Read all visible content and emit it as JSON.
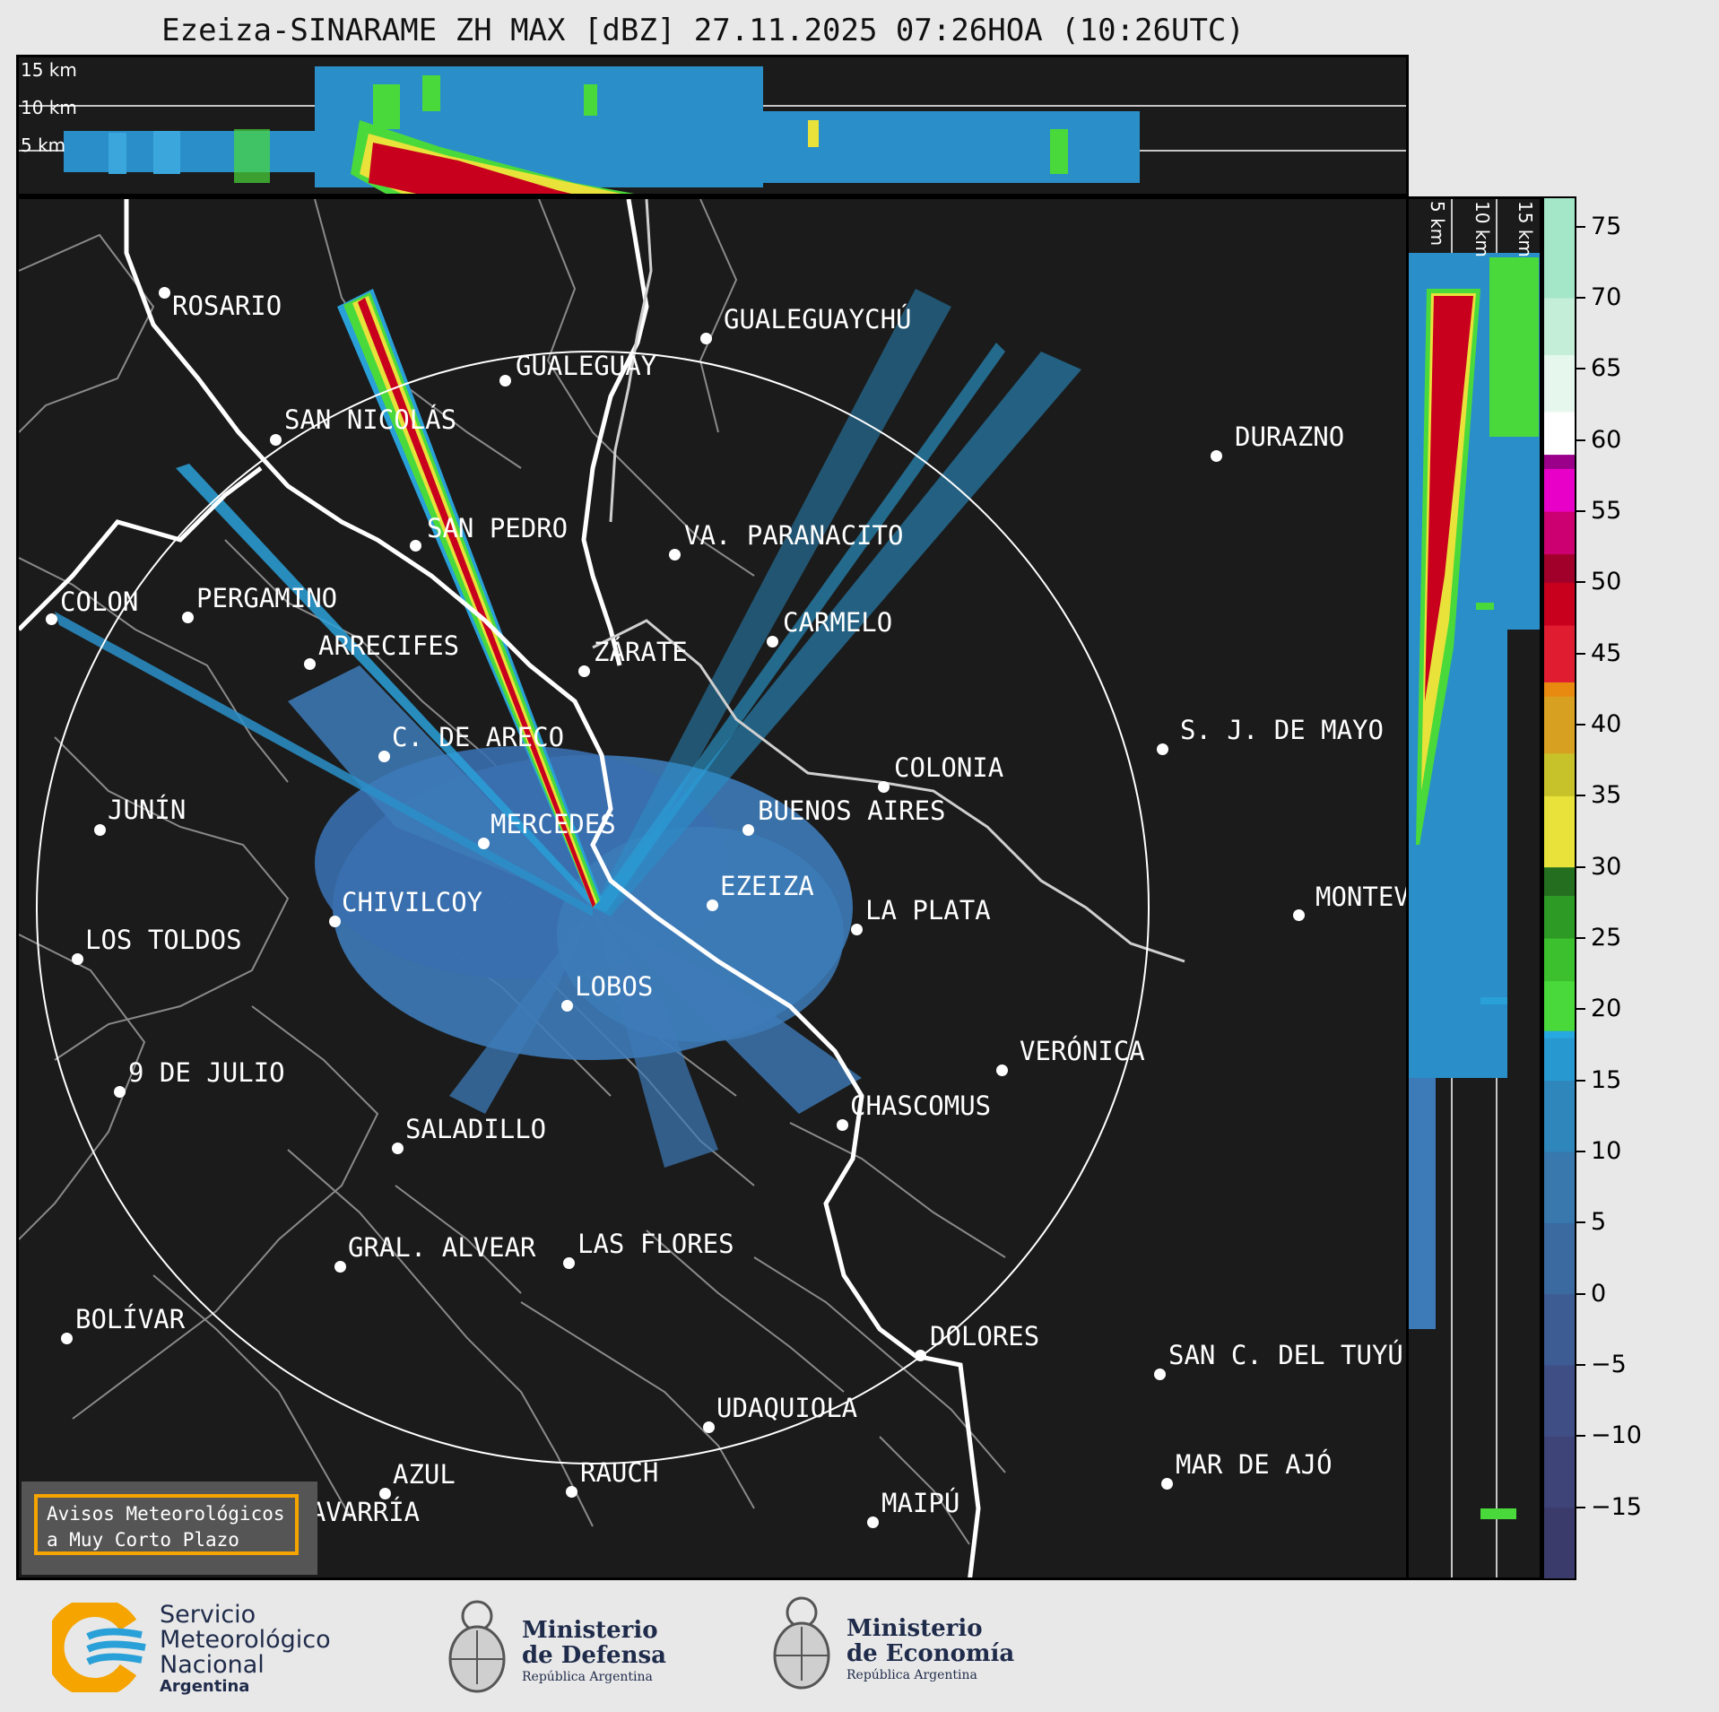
{
  "title": "Ezeiza-SINARAME ZH MAX [dBZ] 27.11.2025 07:26HOA (10:26UTC)",
  "top_panel": {
    "height_labels": [
      "15 km",
      "10 km",
      "5 km"
    ]
  },
  "right_panel": {
    "height_labels": [
      "5 km",
      "10 km",
      "15 km"
    ]
  },
  "colorbar": {
    "ticks": [
      "75",
      "70",
      "65",
      "60",
      "55",
      "50",
      "45",
      "40",
      "35",
      "30",
      "25",
      "20",
      "15",
      "10",
      "5",
      "0",
      "−5",
      "−10",
      "−15"
    ],
    "range": [
      -20,
      77
    ]
  },
  "cities": [
    {
      "name": "ROSARIO",
      "id": "rosario"
    },
    {
      "name": "GUALEGUAYCHÚ",
      "id": "gualeguaychu"
    },
    {
      "name": "GUALEGUAY",
      "id": "gualeguay"
    },
    {
      "name": "SAN NICOLÁS",
      "id": "san-nicolas"
    },
    {
      "name": "DURAZNO",
      "id": "durazno"
    },
    {
      "name": "SAN PEDRO",
      "id": "san-pedro"
    },
    {
      "name": "VA. PARANACITO",
      "id": "va-paranacito"
    },
    {
      "name": "COLON",
      "id": "colon"
    },
    {
      "name": "PERGAMINO",
      "id": "pergamino"
    },
    {
      "name": "CARMELO",
      "id": "carmelo"
    },
    {
      "name": "ARRECIFES",
      "id": "arrecifes"
    },
    {
      "name": "ZÁRATE",
      "id": "zarate"
    },
    {
      "name": "S. J. DE MAYO",
      "id": "sj-de-mayo"
    },
    {
      "name": "C. DE ARECO",
      "id": "c-de-areco"
    },
    {
      "name": "COLONIA",
      "id": "colonia"
    },
    {
      "name": "JUNÍN",
      "id": "junin"
    },
    {
      "name": "BUENOS AIRES",
      "id": "buenos-aires"
    },
    {
      "name": "MERCEDES",
      "id": "mercedes"
    },
    {
      "name": "EZEIZA",
      "id": "ezeiza"
    },
    {
      "name": "MONTEV",
      "id": "montevideo"
    },
    {
      "name": "CHIVILCOY",
      "id": "chivilcoy"
    },
    {
      "name": "LA PLATA",
      "id": "la-plata"
    },
    {
      "name": "LOS TOLDOS",
      "id": "los-toldos"
    },
    {
      "name": "LOBOS",
      "id": "lobos"
    },
    {
      "name": "VERÓNICA",
      "id": "veronica"
    },
    {
      "name": "9 DE JULIO",
      "id": "9-de-julio"
    },
    {
      "name": "CHASCOMUS",
      "id": "chascomus"
    },
    {
      "name": "SALADILLO",
      "id": "saladillo"
    },
    {
      "name": "GRAL. ALVEAR",
      "id": "gral-alvear"
    },
    {
      "name": "LAS FLORES",
      "id": "las-flores"
    },
    {
      "name": "BOLÍVAR",
      "id": "bolivar"
    },
    {
      "name": "DOLORES",
      "id": "dolores"
    },
    {
      "name": "SAN C. DEL TUYÚ",
      "id": "san-c-del-tuyu"
    },
    {
      "name": "UDAQUIOLA",
      "id": "udaquiola"
    },
    {
      "name": "MAR DE AJÓ",
      "id": "mar-de-ajo"
    },
    {
      "name": "AZUL",
      "id": "azul"
    },
    {
      "name": "RAUCH",
      "id": "rauch"
    },
    {
      "name": "MAIPÚ",
      "id": "maipu"
    },
    {
      "name": "OLAVARRÍA",
      "id": "olavarria"
    }
  ],
  "badge": {
    "line1": "Avisos Meteorológicos",
    "line2": "a Muy Corto Plazo"
  },
  "footer": {
    "smn": {
      "line1": "Servicio",
      "line2": "Meteorológico",
      "line3": "Nacional",
      "line4": "Argentina"
    },
    "defensa": {
      "line1": "Ministerio",
      "line2": "de Defensa",
      "line3": "República Argentina"
    },
    "economia": {
      "line1": "Ministerio",
      "line2": "de Economía",
      "line3": "República Argentina"
    }
  },
  "colors": {
    "background": "#1b1b1b",
    "echo_weak": "#3d7bb8",
    "echo_blue": "#2aa0d8",
    "echo_green": "#4ad93a",
    "echo_yellow": "#e8e23a",
    "echo_red": "#c8001e",
    "badge_border": "#f5a400"
  }
}
